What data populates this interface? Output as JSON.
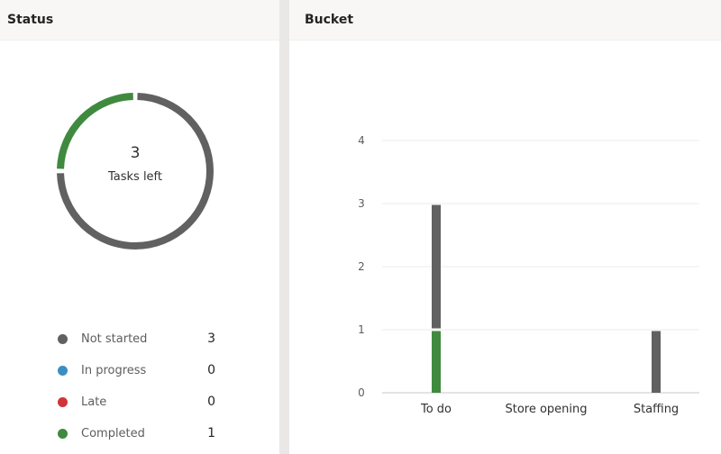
{
  "status": {
    "title": "Status",
    "donut": {
      "value": "3",
      "label": "Tasks left",
      "completed": 1,
      "total": 4
    },
    "legend": [
      {
        "label": "Not started",
        "count": "3",
        "color": "#616161"
      },
      {
        "label": "In progress",
        "count": "0",
        "color": "#3b8ec2"
      },
      {
        "label": "Late",
        "count": "0",
        "color": "#d13438"
      },
      {
        "label": "Completed",
        "count": "1",
        "color": "#3f8a3f"
      }
    ]
  },
  "bucket": {
    "title": "Bucket"
  },
  "chart_data": {
    "type": "bar",
    "stacked": true,
    "categories": [
      "To do",
      "Store opening",
      "Staffing"
    ],
    "series": [
      {
        "values": [
          1,
          0,
          0
        ],
        "color": "#3f8a3f"
      },
      {
        "values": [
          2,
          0,
          1
        ],
        "color": "#616161"
      }
    ],
    "yticks": [
      "0",
      "1",
      "2",
      "3",
      "4"
    ],
    "ylim": [
      0,
      4
    ],
    "grid": true
  }
}
